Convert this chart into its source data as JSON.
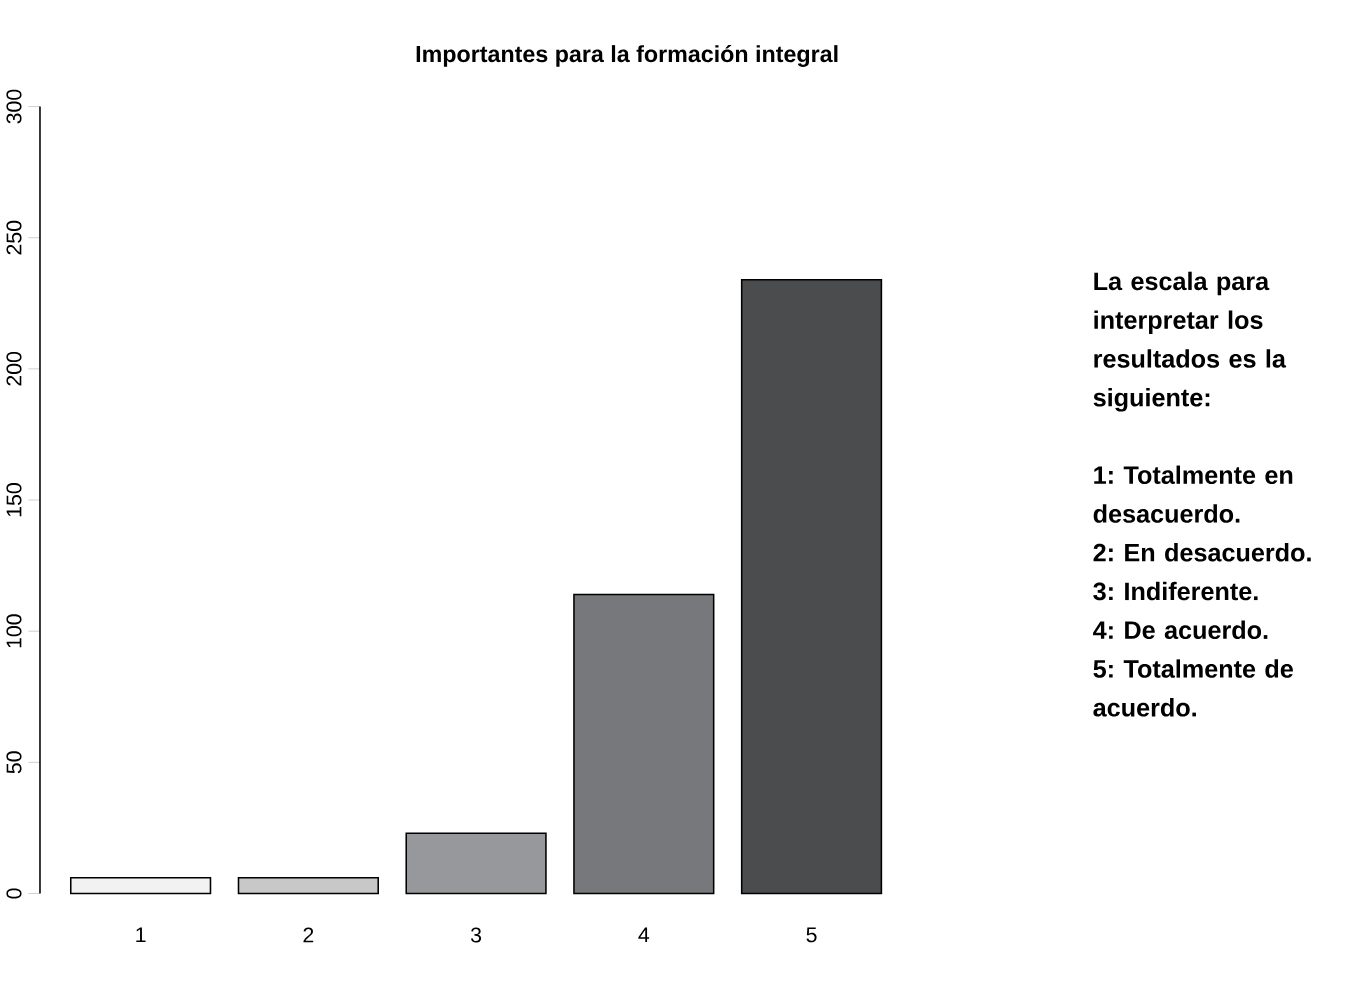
{
  "chart_data": {
    "type": "bar",
    "title": "Importantes para la formación integral",
    "categories": [
      "1",
      "2",
      "3",
      "4",
      "5"
    ],
    "values": [
      6,
      6,
      23,
      114,
      234
    ],
    "colors": [
      "#f2f2f2",
      "#c8c8c8",
      "#97989b",
      "#77787c",
      "#4b4c4e"
    ],
    "ylim": [
      0,
      300
    ],
    "yticks": [
      0,
      50,
      100,
      150,
      200,
      250,
      300
    ],
    "annotations": [
      "La escala para interpretar los resultados es la siguiente:",
      "1: Totalmente en desacuerdo.",
      "2: En desacuerdo.",
      "3: Indiferente.",
      "4: De acuerdo.",
      "5: Totalmente de acuerdo."
    ]
  }
}
